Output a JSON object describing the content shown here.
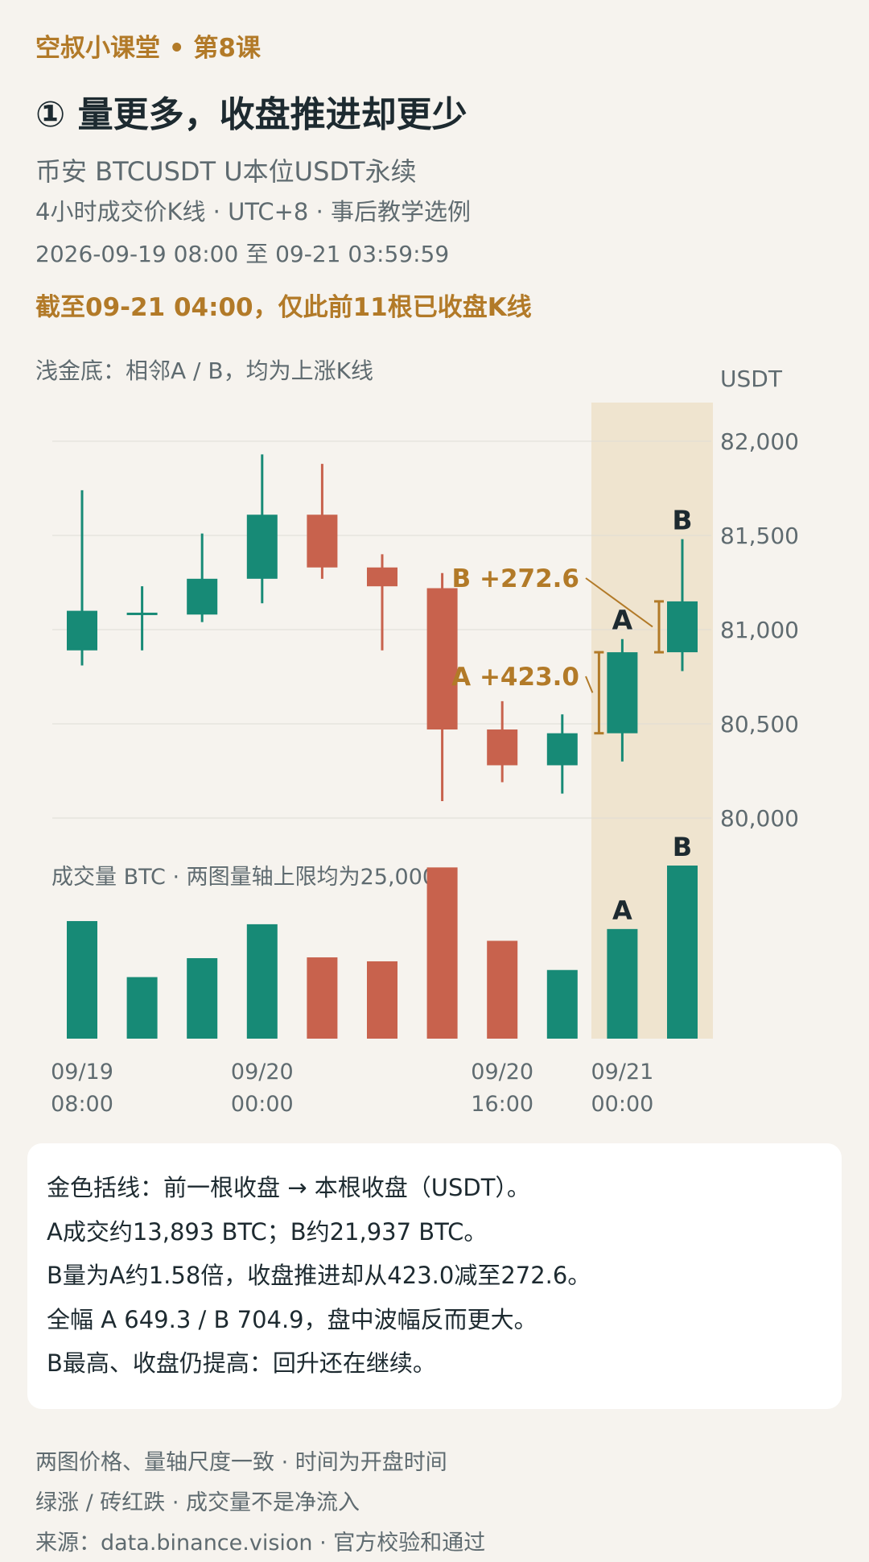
{
  "header": {
    "kicker": "空叔小课堂 • 第8课",
    "title": "① 量更多，收盘推进却更少",
    "subtitle1": "币安 BTCUSDT U本位USDT永续",
    "subtitle2": "4小时成交价K线 · UTC+8 · 事后教学选例",
    "subtitle3": "2026-09-19 08:00 至 09-21 03:59:59",
    "cutoff": "截至09-21 04:00，仅此前11根已收盘K线"
  },
  "chart_data": {
    "type": "candlestick",
    "highlight_note": "浅金底：相邻A / B，均为上涨K线",
    "price_unit": "USDT",
    "price_ticks": [
      "82,000",
      "81,500",
      "81,000",
      "80,500",
      "80,000"
    ],
    "price_tick_values": [
      82000,
      81500,
      81000,
      80500,
      80000
    ],
    "ylim": [
      79900,
      82200
    ],
    "volume_title": "成交量 BTC · 两图量轴上限均为25,000",
    "volume_max": 25000,
    "x_labels": [
      {
        "index": 0,
        "line1": "09/19",
        "line2": "08:00"
      },
      {
        "index": 3,
        "line1": "09/20",
        "line2": "00:00"
      },
      {
        "index": 7,
        "line1": "09/20",
        "line2": "16:00"
      },
      {
        "index": 9,
        "line1": "09/21",
        "line2": "00:00"
      }
    ],
    "candles": [
      {
        "open": 80890,
        "high": 81740,
        "low": 80810,
        "close": 81100,
        "volume": 14900
      },
      {
        "open": 81080,
        "high": 81230,
        "low": 80890,
        "close": 81090,
        "volume": 7800
      },
      {
        "open": 81080,
        "high": 81510,
        "low": 81040,
        "close": 81270,
        "volume": 10200
      },
      {
        "open": 81270,
        "high": 81930,
        "low": 81140,
        "close": 81610,
        "volume": 14500
      },
      {
        "open": 81610,
        "high": 81880,
        "low": 81270,
        "close": 81330,
        "volume": 10300
      },
      {
        "open": 81330,
        "high": 81400,
        "low": 80890,
        "close": 81230,
        "volume": 9800
      },
      {
        "open": 81220,
        "high": 81300,
        "low": 80090,
        "close": 80470,
        "volume": 21700
      },
      {
        "open": 80470,
        "high": 80620,
        "low": 80190,
        "close": 80280,
        "volume": 12400
      },
      {
        "open": 80280,
        "high": 80550,
        "low": 80130,
        "close": 80450,
        "volume": 8700
      },
      {
        "open": 80450,
        "high": 80950,
        "low": 80300,
        "close": 80880,
        "volume": 13893,
        "tag": "A"
      },
      {
        "open": 80880,
        "high": 81480,
        "low": 80780,
        "close": 81150,
        "volume": 21937,
        "tag": "B"
      }
    ],
    "annotations": [
      {
        "tag": "A",
        "label": "A +423.0",
        "from_close": 80450,
        "to_close": 80880
      },
      {
        "tag": "B",
        "label": "B +272.6",
        "from_close": 80880,
        "to_close": 81150
      }
    ],
    "colors": {
      "up": "#178a76",
      "down": "#c8624d",
      "gold": "#b27a28",
      "highlight": "#efe4cf",
      "grid": "#dfdcd6"
    }
  },
  "notes": [
    "金色括线：前一根收盘 → 本根收盘（USDT）。",
    "A成交约13,893 BTC；B约21,937 BTC。",
    "B量为A约1.58倍，收盘推进却从423.0减至272.6。",
    "全幅 A 649.3 / B 704.9，盘中波幅反而更大。",
    "B最高、收盘仍提高：回升还在继续。"
  ],
  "footer": [
    "两图价格、量轴尺度一致 · 时间为开盘时间",
    "绿涨 / 砖红跌 · 成交量不是净流入",
    "来源：data.binance.vision · 官方校验和通过"
  ]
}
